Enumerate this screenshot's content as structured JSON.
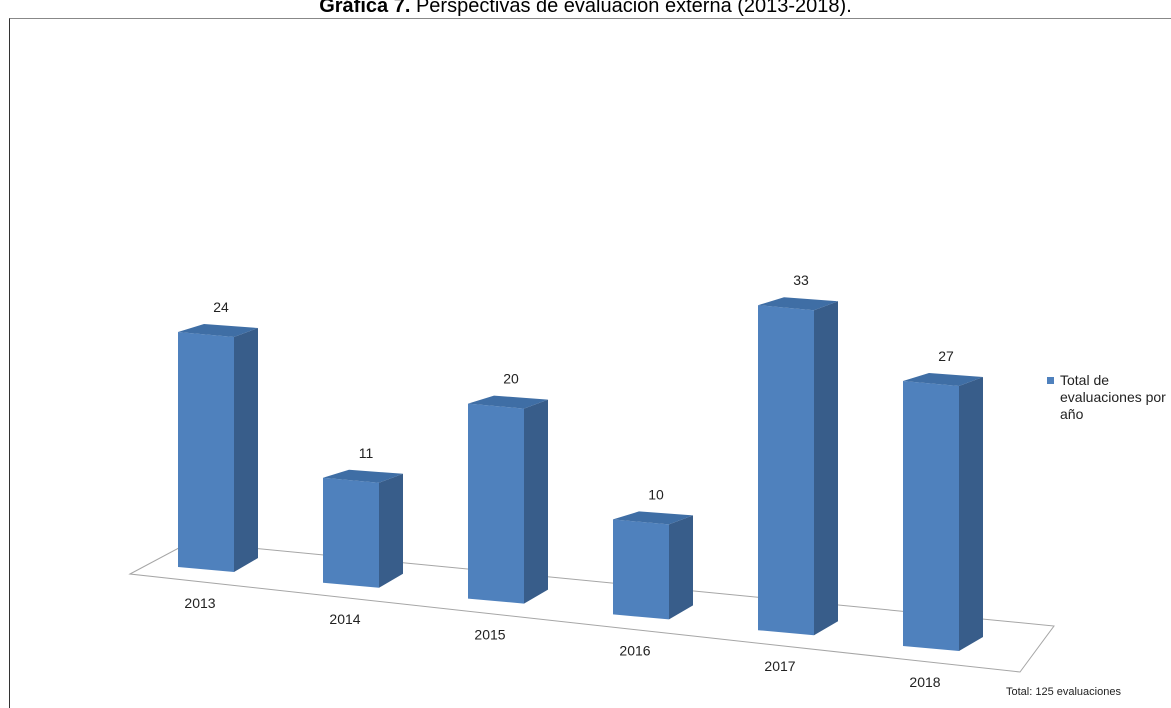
{
  "title": {
    "prefix": "Gráfica 7.",
    "text": " Perspectivas de evaluación externa (2013-2018)."
  },
  "chart_data": {
    "type": "bar",
    "categories": [
      "2013",
      "2014",
      "2015",
      "2016",
      "2017",
      "2018"
    ],
    "series": [
      {
        "name": "Total de evaluaciones por año",
        "values": [
          24,
          11,
          20,
          10,
          33,
          27
        ]
      }
    ],
    "legend_position": "right",
    "grid": false
  },
  "legend": {
    "label": "Total de evaluaciones por año"
  },
  "note": "Total: 125 evaluaciones",
  "colors": {
    "bar_front": "#4f81bd",
    "bar_side": "#385d8a",
    "bar_top": "#3f6ea5"
  }
}
